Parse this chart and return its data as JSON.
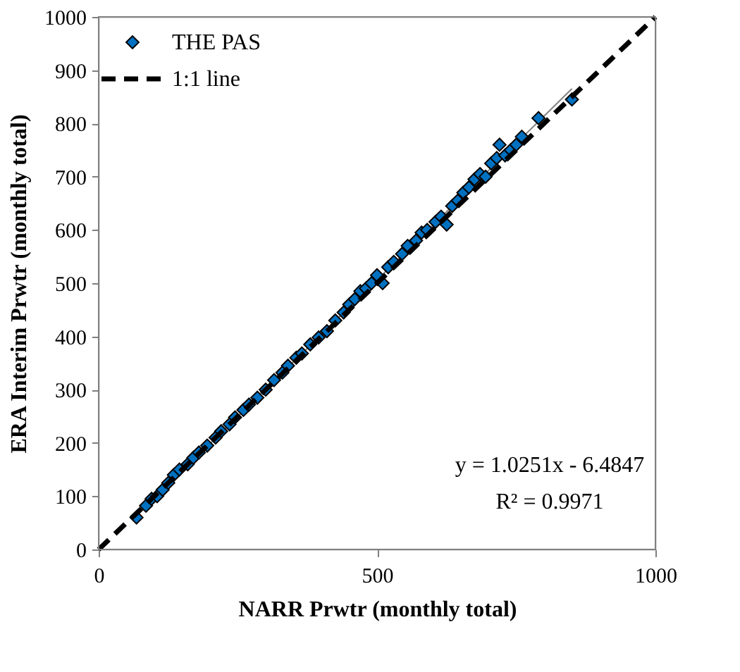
{
  "chart_data": {
    "type": "scatter",
    "xlabel": "NARR Prwtr (monthly total)",
    "ylabel": "ERA Interim Prwtr (monthly total)",
    "xlim": [
      0,
      1000
    ],
    "ylim": [
      0,
      1000
    ],
    "xticks": [
      0,
      500,
      1000
    ],
    "yticks": [
      0,
      100,
      200,
      300,
      400,
      500,
      600,
      700,
      800,
      900,
      1000
    ],
    "grid": false,
    "legend": "top left",
    "marker": "diamond",
    "annotations": [
      "y = 1.0251x - 6.4847",
      "R² = 0.9971"
    ],
    "series": [
      {
        "name": "THE PAS",
        "color": "#0070c0",
        "x": [
          68,
          85,
          95,
          105,
          115,
          125,
          135,
          145,
          160,
          170,
          180,
          195,
          210,
          220,
          235,
          245,
          260,
          270,
          285,
          300,
          315,
          330,
          340,
          355,
          365,
          380,
          395,
          410,
          425,
          440,
          450,
          460,
          470,
          480,
          490,
          500,
          510,
          520,
          530,
          545,
          555,
          570,
          580,
          590,
          605,
          615,
          625,
          635,
          645,
          655,
          665,
          675,
          685,
          695,
          705,
          715,
          720,
          730,
          740,
          750,
          760,
          790,
          850
        ],
        "values": [
          60,
          82,
          95,
          100,
          112,
          125,
          140,
          150,
          160,
          172,
          182,
          195,
          210,
          222,
          235,
          248,
          262,
          272,
          285,
          300,
          318,
          332,
          345,
          360,
          368,
          385,
          398,
          410,
          430,
          445,
          460,
          470,
          485,
          490,
          500,
          515,
          500,
          530,
          540,
          555,
          570,
          580,
          595,
          600,
          615,
          625,
          610,
          645,
          655,
          670,
          680,
          695,
          705,
          700,
          725,
          735,
          760,
          740,
          750,
          760,
          775,
          810,
          845
        ]
      },
      {
        "type": "line",
        "color": "#808080",
        "line_style": "solid",
        "marker": "none",
        "x": [
          60,
          850
        ],
        "values": [
          55,
          865
        ]
      },
      {
        "name": "1:1 line",
        "type": "line",
        "color": "#000000",
        "line_style": "dashed",
        "marker": "none",
        "x": [
          0,
          1000
        ],
        "values": [
          0,
          1000
        ]
      }
    ]
  }
}
